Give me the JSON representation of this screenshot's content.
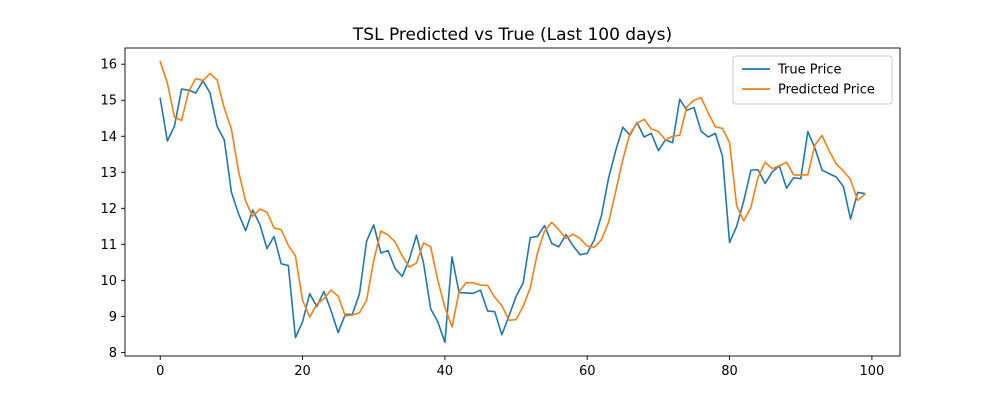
{
  "chart_data": {
    "type": "line",
    "title": "TSL Predicted vs True (Last 100 days)",
    "xlabel": "",
    "ylabel": "",
    "xlim": [
      -4.95,
      103.95
    ],
    "ylim": [
      7.9,
      16.45
    ],
    "xticks": [
      0,
      20,
      40,
      60,
      80,
      100
    ],
    "yticks": [
      8,
      9,
      10,
      11,
      12,
      13,
      14,
      15,
      16
    ],
    "grid": false,
    "legend_position": "top-right",
    "x": [
      0,
      1,
      2,
      3,
      4,
      5,
      6,
      7,
      8,
      9,
      10,
      11,
      12,
      13,
      14,
      15,
      16,
      17,
      18,
      19,
      20,
      21,
      22,
      23,
      24,
      25,
      26,
      27,
      28,
      29,
      30,
      31,
      32,
      33,
      34,
      35,
      36,
      37,
      38,
      39,
      40,
      41,
      42,
      43,
      44,
      45,
      46,
      47,
      48,
      49,
      50,
      51,
      52,
      53,
      54,
      55,
      56,
      57,
      58,
      59,
      60,
      61,
      62,
      63,
      64,
      65,
      66,
      67,
      68,
      69,
      70,
      71,
      72,
      73,
      74,
      75,
      76,
      77,
      78,
      79,
      80,
      81,
      82,
      83,
      84,
      85,
      86,
      87,
      88,
      89,
      90,
      91,
      92,
      93,
      94,
      95,
      96,
      97,
      98,
      99
    ],
    "series": [
      {
        "name": "True Price",
        "color": "#1f77b4",
        "values": [
          15.05,
          13.87,
          14.28,
          15.31,
          15.28,
          15.2,
          15.54,
          15.2,
          14.27,
          13.9,
          12.45,
          11.85,
          11.38,
          11.95,
          11.55,
          10.88,
          11.22,
          10.46,
          10.41,
          8.41,
          8.85,
          9.63,
          9.27,
          9.69,
          9.16,
          8.55,
          9.05,
          9.06,
          9.63,
          11.09,
          11.54,
          10.76,
          10.83,
          10.33,
          10.11,
          10.58,
          11.25,
          10.48,
          9.21,
          8.85,
          8.28,
          10.65,
          9.66,
          9.65,
          9.64,
          9.73,
          9.15,
          9.13,
          8.49,
          9.01,
          9.55,
          9.93,
          11.19,
          11.22,
          11.52,
          11.03,
          10.93,
          11.27,
          10.96,
          10.71,
          10.75,
          11.13,
          11.8,
          12.84,
          13.6,
          14.25,
          14.03,
          14.38,
          13.98,
          14.08,
          13.6,
          13.9,
          13.82,
          15.03,
          14.72,
          14.8,
          14.14,
          13.98,
          14.08,
          13.45,
          11.05,
          11.5,
          12.21,
          13.06,
          13.07,
          12.69,
          13.01,
          13.18,
          12.56,
          12.85,
          12.82,
          14.13,
          13.67,
          13.06,
          12.96,
          12.87,
          12.6,
          11.7,
          12.44,
          12.41
        ]
      },
      {
        "name": "Predicted Price",
        "color": "#ff7f0e",
        "values": [
          16.07,
          15.48,
          14.53,
          14.44,
          15.25,
          15.6,
          15.55,
          15.74,
          15.56,
          14.78,
          14.2,
          13.03,
          12.2,
          11.78,
          11.98,
          11.89,
          11.45,
          11.41,
          10.97,
          10.68,
          9.45,
          8.98,
          9.34,
          9.49,
          9.73,
          9.56,
          9.01,
          9.04,
          9.1,
          9.45,
          10.55,
          11.37,
          11.26,
          11.07,
          10.68,
          10.37,
          10.48,
          11.04,
          10.93,
          10.0,
          9.25,
          8.71,
          9.69,
          9.94,
          9.93,
          9.87,
          9.86,
          9.53,
          9.3,
          8.89,
          8.91,
          9.28,
          9.8,
          10.76,
          11.37,
          11.61,
          11.41,
          11.16,
          11.28,
          11.16,
          10.95,
          10.92,
          11.13,
          11.61,
          12.47,
          13.35,
          14.07,
          14.36,
          14.47,
          14.2,
          14.13,
          13.9,
          14.0,
          14.03,
          14.82,
          15.0,
          15.07,
          14.65,
          14.26,
          14.22,
          13.82,
          12.07,
          11.65,
          12.03,
          12.86,
          13.28,
          13.1,
          13.18,
          13.28,
          12.93,
          12.92,
          12.93,
          13.76,
          14.02,
          13.59,
          13.23,
          13.04,
          12.8,
          12.22,
          12.39
        ]
      }
    ]
  }
}
